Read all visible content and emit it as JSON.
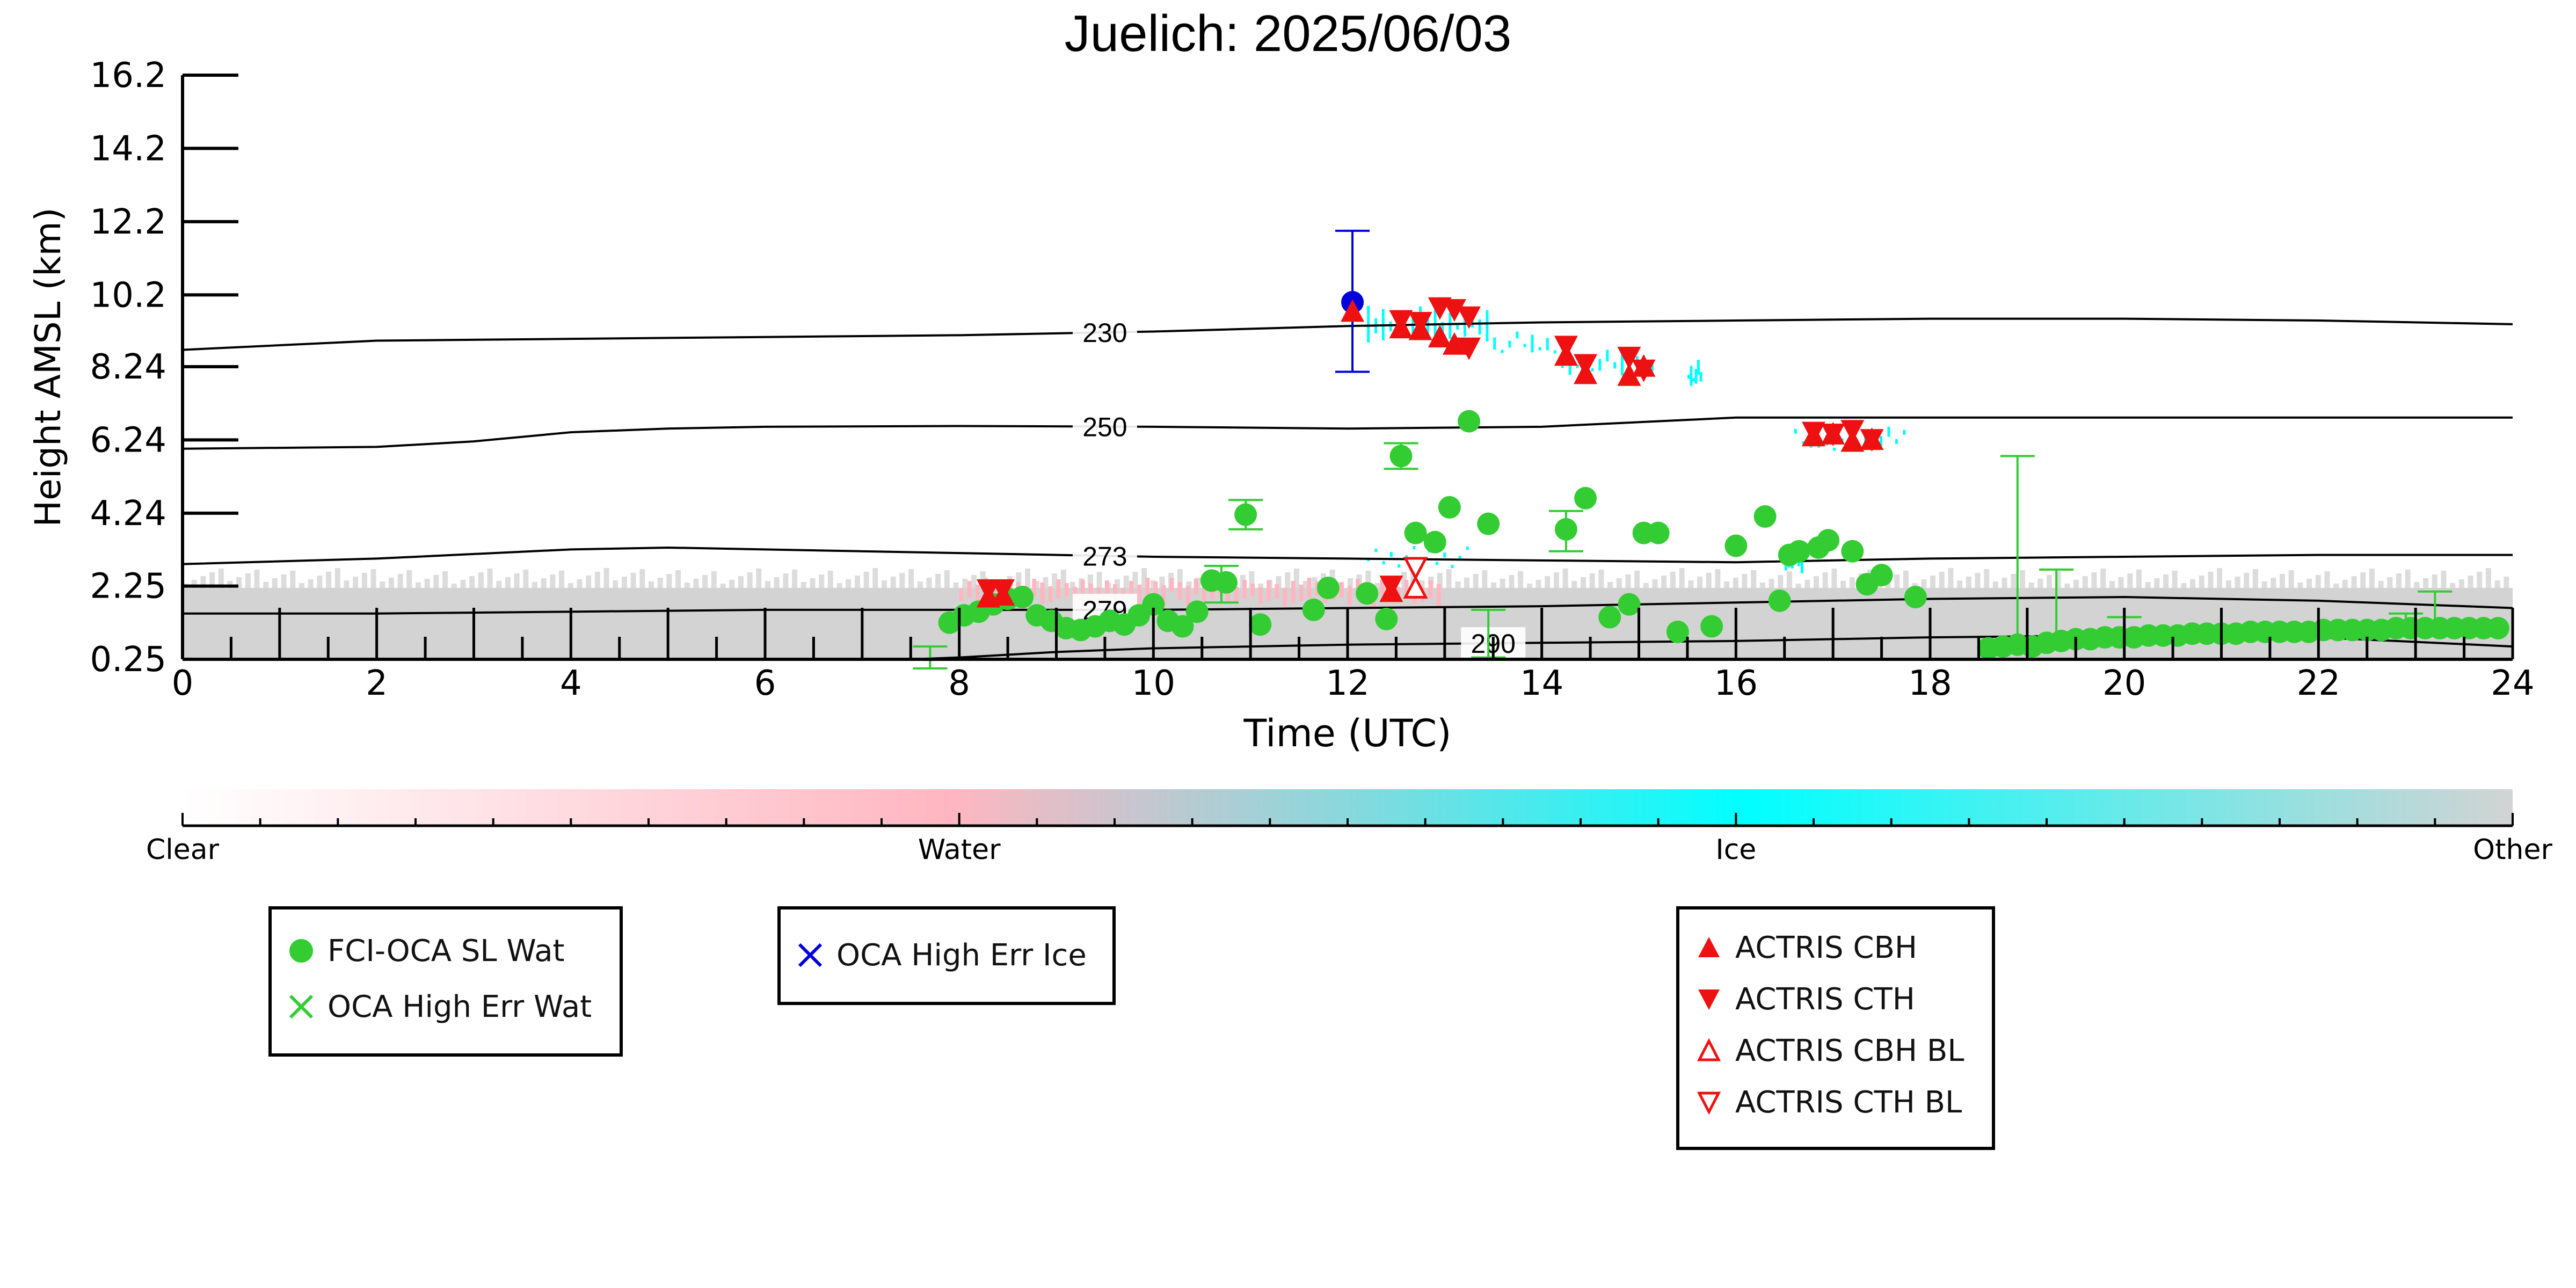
{
  "title": "Juelich: 2025/06/03",
  "chart_data": {
    "type": "scatter",
    "title": "Juelich: 2025/06/03",
    "xlabel": "Time (UTC)",
    "ylabel": "Height AMSL (km)",
    "xlim": [
      0,
      24
    ],
    "ylim": [
      0.25,
      16.2
    ],
    "xticks": [
      0,
      2,
      4,
      6,
      8,
      10,
      12,
      14,
      16,
      18,
      20,
      22,
      24
    ],
    "yticks": [
      0.25,
      2.25,
      4.24,
      6.24,
      8.24,
      10.2,
      12.2,
      14.2,
      16.2
    ],
    "ytick_labels": [
      "0.25",
      "2.25",
      "4.24",
      "6.24",
      "8.24",
      "10.2",
      "12.2",
      "14.2",
      "16.2"
    ],
    "isotherms": [
      {
        "label": "230",
        "label_x": 9.5,
        "x": [
          0,
          2,
          4,
          6,
          8,
          10,
          12,
          14,
          16,
          18,
          20,
          22,
          24
        ],
        "y": [
          8.7,
          8.95,
          9.0,
          9.05,
          9.1,
          9.2,
          9.35,
          9.45,
          9.5,
          9.55,
          9.55,
          9.5,
          9.4
        ]
      },
      {
        "label": "250",
        "label_x": 9.5,
        "x": [
          0,
          2,
          3,
          4,
          5,
          6,
          8,
          10,
          12,
          14,
          16,
          18,
          20,
          22,
          24
        ],
        "y": [
          6.0,
          6.05,
          6.2,
          6.45,
          6.55,
          6.6,
          6.62,
          6.6,
          6.55,
          6.6,
          6.85,
          6.85,
          6.85,
          6.85,
          6.85
        ]
      },
      {
        "label": "273",
        "label_x": 9.5,
        "x": [
          0,
          2,
          4,
          5,
          6,
          8,
          10,
          12,
          14,
          16,
          18,
          20,
          22,
          24
        ],
        "y": [
          2.85,
          3.0,
          3.25,
          3.3,
          3.25,
          3.15,
          3.05,
          3.0,
          2.95,
          2.9,
          3.0,
          3.05,
          3.1,
          3.1
        ]
      },
      {
        "label": "279",
        "label_x": 9.5,
        "x": [
          0,
          2,
          4,
          6,
          8,
          10,
          12,
          14,
          16,
          18,
          20,
          22,
          24
        ],
        "y": [
          1.5,
          1.5,
          1.55,
          1.6,
          1.6,
          1.6,
          1.65,
          1.7,
          1.8,
          1.9,
          1.95,
          1.85,
          1.65
        ]
      },
      {
        "label": "290",
        "label_x": 13.5,
        "x": [
          7.5,
          8,
          9,
          10,
          12,
          14,
          16,
          18,
          20,
          22,
          24
        ],
        "y": [
          0.25,
          0.3,
          0.45,
          0.55,
          0.65,
          0.7,
          0.75,
          0.85,
          0.9,
          0.85,
          0.6
        ]
      }
    ],
    "series": [
      {
        "name": "FCI-OCA SL Wat",
        "marker": "circle",
        "color": "#33cc33",
        "points": [
          {
            "x": 7.9,
            "y": 1.25
          },
          {
            "x": 8.05,
            "y": 1.45
          },
          {
            "x": 8.2,
            "y": 1.55
          },
          {
            "x": 8.35,
            "y": 1.75
          },
          {
            "x": 8.5,
            "y": 1.9
          },
          {
            "x": 8.65,
            "y": 1.95
          },
          {
            "x": 8.8,
            "y": 1.45
          },
          {
            "x": 8.95,
            "y": 1.3
          },
          {
            "x": 9.1,
            "y": 1.1
          },
          {
            "x": 9.25,
            "y": 1.05
          },
          {
            "x": 9.4,
            "y": 1.15
          },
          {
            "x": 9.55,
            "y": 1.3
          },
          {
            "x": 9.7,
            "y": 1.2
          },
          {
            "x": 9.85,
            "y": 1.45
          },
          {
            "x": 10.0,
            "y": 1.75
          },
          {
            "x": 10.15,
            "y": 1.3
          },
          {
            "x": 10.3,
            "y": 1.15
          },
          {
            "x": 10.45,
            "y": 1.55
          },
          {
            "x": 10.6,
            "y": 2.4
          },
          {
            "x": 10.75,
            "y": 2.35
          },
          {
            "x": 10.95,
            "y": 4.2
          },
          {
            "x": 11.1,
            "y": 1.2
          },
          {
            "x": 11.65,
            "y": 1.6
          },
          {
            "x": 11.8,
            "y": 2.2
          },
          {
            "x": 12.2,
            "y": 2.05
          },
          {
            "x": 12.4,
            "y": 1.35
          },
          {
            "x": 12.55,
            "y": 5.8
          },
          {
            "x": 12.7,
            "y": 3.7
          },
          {
            "x": 12.9,
            "y": 3.45
          },
          {
            "x": 13.05,
            "y": 4.4
          },
          {
            "x": 13.25,
            "y": 6.75
          },
          {
            "x": 13.45,
            "y": 3.95
          },
          {
            "x": 14.25,
            "y": 3.8
          },
          {
            "x": 14.45,
            "y": 4.65
          },
          {
            "x": 14.7,
            "y": 1.4
          },
          {
            "x": 14.9,
            "y": 1.75
          },
          {
            "x": 15.05,
            "y": 3.7
          },
          {
            "x": 15.2,
            "y": 3.7
          },
          {
            "x": 15.4,
            "y": 1.0
          },
          {
            "x": 15.75,
            "y": 1.15
          },
          {
            "x": 16.0,
            "y": 3.35
          },
          {
            "x": 16.3,
            "y": 4.15
          },
          {
            "x": 16.45,
            "y": 1.85
          },
          {
            "x": 16.55,
            "y": 3.1
          },
          {
            "x": 16.65,
            "y": 3.2
          },
          {
            "x": 16.85,
            "y": 3.3
          },
          {
            "x": 16.95,
            "y": 3.5
          },
          {
            "x": 17.2,
            "y": 3.2
          },
          {
            "x": 17.35,
            "y": 2.3
          },
          {
            "x": 17.5,
            "y": 2.55
          },
          {
            "x": 17.85,
            "y": 1.95
          },
          {
            "x": 18.6,
            "y": 0.55
          },
          {
            "x": 18.75,
            "y": 0.6
          },
          {
            "x": 18.9,
            "y": 0.65
          },
          {
            "x": 19.05,
            "y": 0.6
          },
          {
            "x": 19.2,
            "y": 0.7
          },
          {
            "x": 19.35,
            "y": 0.75
          },
          {
            "x": 19.5,
            "y": 0.8
          },
          {
            "x": 19.65,
            "y": 0.8
          },
          {
            "x": 19.8,
            "y": 0.85
          },
          {
            "x": 19.95,
            "y": 0.85
          },
          {
            "x": 20.1,
            "y": 0.85
          },
          {
            "x": 20.25,
            "y": 0.9
          },
          {
            "x": 20.4,
            "y": 0.9
          },
          {
            "x": 20.55,
            "y": 0.9
          },
          {
            "x": 20.7,
            "y": 0.95
          },
          {
            "x": 20.85,
            "y": 0.95
          },
          {
            "x": 21.0,
            "y": 0.95
          },
          {
            "x": 21.15,
            "y": 0.95
          },
          {
            "x": 21.3,
            "y": 1.0
          },
          {
            "x": 21.45,
            "y": 1.0
          },
          {
            "x": 21.6,
            "y": 1.0
          },
          {
            "x": 21.75,
            "y": 1.0
          },
          {
            "x": 21.9,
            "y": 1.0
          },
          {
            "x": 22.05,
            "y": 1.05
          },
          {
            "x": 22.2,
            "y": 1.05
          },
          {
            "x": 22.35,
            "y": 1.05
          },
          {
            "x": 22.5,
            "y": 1.05
          },
          {
            "x": 22.65,
            "y": 1.05
          },
          {
            "x": 22.8,
            "y": 1.1
          },
          {
            "x": 22.95,
            "y": 1.1
          },
          {
            "x": 23.1,
            "y": 1.1
          },
          {
            "x": 23.25,
            "y": 1.1
          },
          {
            "x": 23.4,
            "y": 1.1
          },
          {
            "x": 23.55,
            "y": 1.1
          },
          {
            "x": 23.7,
            "y": 1.1
          },
          {
            "x": 23.85,
            "y": 1.1
          }
        ],
        "error_bars": [
          {
            "x": 7.7,
            "y": 0.25,
            "lo": 0.0,
            "hi": 0.6
          },
          {
            "x": 10.7,
            "y": 2.35,
            "lo": 1.8,
            "hi": 2.8
          },
          {
            "x": 10.95,
            "y": 4.2,
            "lo": 3.8,
            "hi": 4.6
          },
          {
            "x": 12.55,
            "y": 5.8,
            "lo": 5.45,
            "hi": 6.15
          },
          {
            "x": 13.45,
            "y": 0.8,
            "lo": 0.3,
            "hi": 1.6
          },
          {
            "x": 14.25,
            "y": 3.8,
            "lo": 3.2,
            "hi": 4.3
          },
          {
            "x": 18.9,
            "y": 1.0,
            "lo": 0.5,
            "hi": 5.8
          },
          {
            "x": 19.3,
            "y": 1.0,
            "lo": 0.6,
            "hi": 2.7
          },
          {
            "x": 20.0,
            "y": 1.0,
            "lo": 0.7,
            "hi": 1.4
          },
          {
            "x": 22.9,
            "y": 1.3,
            "lo": 1.0,
            "hi": 1.5
          },
          {
            "x": 23.2,
            "y": 1.6,
            "lo": 1.2,
            "hi": 2.1
          }
        ]
      },
      {
        "name": "OCA High Err Ice",
        "marker": "circle",
        "color": "#0000dd",
        "points": [
          {
            "x": 12.05,
            "y": 10.0
          }
        ],
        "error_bars": [
          {
            "x": 12.05,
            "y": 10.0,
            "lo": 8.1,
            "hi": 11.95
          }
        ]
      },
      {
        "name": "ACTRIS CBH",
        "marker": "triangle-up",
        "color": "#ee1111",
        "points": [
          {
            "x": 12.05,
            "y": 9.7
          },
          {
            "x": 12.55,
            "y": 9.25
          },
          {
            "x": 12.75,
            "y": 9.2
          },
          {
            "x": 12.95,
            "y": 9.0
          },
          {
            "x": 13.1,
            "y": 8.8
          },
          {
            "x": 14.25,
            "y": 8.5
          },
          {
            "x": 14.45,
            "y": 8.0
          },
          {
            "x": 14.9,
            "y": 7.95
          },
          {
            "x": 15.05,
            "y": 8.2
          },
          {
            "x": 16.8,
            "y": 6.3
          },
          {
            "x": 17.0,
            "y": 6.35
          },
          {
            "x": 17.2,
            "y": 6.15
          },
          {
            "x": 17.4,
            "y": 6.2
          },
          {
            "x": 12.45,
            "y": 2.05
          },
          {
            "x": 8.3,
            "y": 1.9
          },
          {
            "x": 8.45,
            "y": 1.95
          }
        ]
      },
      {
        "name": "ACTRIS CTH",
        "marker": "triangle-down",
        "color": "#ee1111",
        "points": [
          {
            "x": 12.55,
            "y": 9.55
          },
          {
            "x": 12.75,
            "y": 9.5
          },
          {
            "x": 12.95,
            "y": 9.9
          },
          {
            "x": 13.1,
            "y": 9.85
          },
          {
            "x": 13.25,
            "y": 9.65
          },
          {
            "x": 13.25,
            "y": 8.8
          },
          {
            "x": 14.25,
            "y": 8.85
          },
          {
            "x": 14.45,
            "y": 8.35
          },
          {
            "x": 14.9,
            "y": 8.55
          },
          {
            "x": 15.05,
            "y": 8.2
          },
          {
            "x": 16.8,
            "y": 6.5
          },
          {
            "x": 17.0,
            "y": 6.45
          },
          {
            "x": 17.2,
            "y": 6.55
          },
          {
            "x": 17.4,
            "y": 6.3
          },
          {
            "x": 8.3,
            "y": 2.2
          },
          {
            "x": 8.45,
            "y": 2.2
          },
          {
            "x": 12.45,
            "y": 2.3
          }
        ]
      },
      {
        "name": "ACTRIS CBH BL",
        "marker": "triangle-up-open",
        "color": "#ee1111",
        "points": [
          {
            "x": 12.7,
            "y": 2.15
          }
        ]
      },
      {
        "name": "ACTRIS CTH BL",
        "marker": "triangle-down-open",
        "color": "#ee1111",
        "points": [
          {
            "x": 12.7,
            "y": 2.8
          }
        ]
      },
      {
        "name": "OCA High Err Wat",
        "marker": "x",
        "color": "#33cc33",
        "points": []
      }
    ],
    "classification_background": {
      "other_color": "#d3d3d3",
      "ice_color": "#00ffff",
      "water_color": "#ffb6c1",
      "other_band": {
        "x": [
          0,
          24
        ],
        "y": [
          0.25,
          2.2
        ]
      },
      "ice_patches": [
        {
          "x": [
            12.2,
            13.5
          ],
          "y": [
            8.9,
            9.9
          ]
        },
        {
          "x": [
            13.5,
            14.2
          ],
          "y": [
            8.6,
            9.2
          ]
        },
        {
          "x": [
            14.2,
            15.2
          ],
          "y": [
            8.0,
            8.7
          ]
        },
        {
          "x": [
            15.5,
            15.65
          ],
          "y": [
            7.6,
            8.5
          ]
        },
        {
          "x": [
            16.6,
            17.8
          ],
          "y": [
            6.0,
            6.6
          ]
        },
        {
          "x": [
            16.5,
            16.7
          ],
          "y": [
            2.6,
            3.4
          ]
        },
        {
          "x": [
            12.2,
            13.3
          ],
          "y": [
            3.0,
            3.4
          ]
        }
      ],
      "legend_labels": [
        "Clear",
        "Water",
        "Ice",
        "Other"
      ],
      "legend_stops": [
        0,
        8,
        16,
        24
      ]
    }
  },
  "colorbar": {
    "labels": {
      "clear": "Clear",
      "water": "Water",
      "ice": "Ice",
      "other": "Other"
    }
  },
  "legends": {
    "box1": [
      {
        "label": "FCI-OCA SL Wat",
        "symbol": "circle",
        "color": "#33cc33"
      },
      {
        "label": "OCA High Err Wat",
        "symbol": "x",
        "color": "#33cc33"
      }
    ],
    "box2": [
      {
        "label": "OCA High Err Ice",
        "symbol": "x",
        "color": "#0000dd"
      }
    ],
    "box3": [
      {
        "label": "ACTRIS CBH",
        "symbol": "triangle-up",
        "color": "#ee1111"
      },
      {
        "label": "ACTRIS CTH",
        "symbol": "triangle-down",
        "color": "#ee1111"
      },
      {
        "label": "ACTRIS CBH BL",
        "symbol": "triangle-up-open",
        "color": "#ee1111"
      },
      {
        "label": "ACTRIS CTH BL",
        "symbol": "triangle-down-open",
        "color": "#ee1111"
      }
    ]
  }
}
